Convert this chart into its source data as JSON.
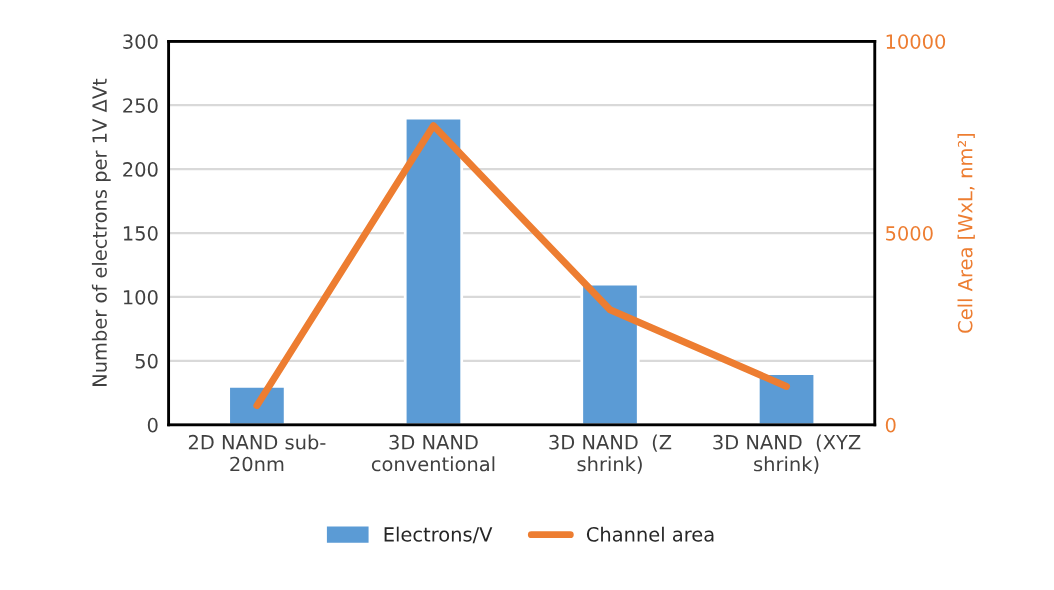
{
  "chart_data": {
    "type": "bar",
    "categories": [
      "2D NAND sub-\n20nm",
      "3D NAND\nconventional",
      "3D NAND  (Z\nshrink)",
      "3D NAND  (XYZ\nshrink)"
    ],
    "series": [
      {
        "name": "Electrons/V",
        "color": "#5b9bd5",
        "values": [
          30,
          240,
          110,
          40
        ]
      },
      {
        "name": "Channel area",
        "type": "line",
        "axis": "y2",
        "color": "#ed7d31",
        "values": [
          500,
          7800,
          3000,
          1000
        ]
      }
    ],
    "ylabel": "Number of electrons per 1V ΔVt",
    "y2label": "Cell Area [WxL, nm²]",
    "ylim": [
      0,
      300
    ],
    "yticks": [
      0,
      50,
      100,
      150,
      200,
      250,
      300
    ],
    "y2lim": [
      0,
      10000
    ],
    "y2ticks": [
      0,
      5000,
      10000
    ],
    "grid": "y",
    "legend": "bottom",
    "marker": "none",
    "line_style": "solid"
  }
}
